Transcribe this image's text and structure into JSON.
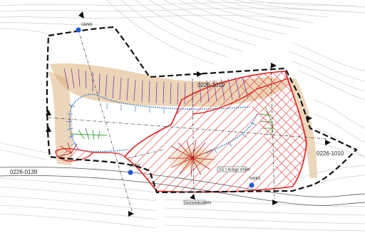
{
  "wells": [
    {
      "id": "gwm3",
      "label": "GWM3"
    },
    {
      "id": "gwm2",
      "label": "GWM2"
    },
    {
      "id": "gwm1",
      "label": "GWM1"
    }
  ],
  "parcels": [
    {
      "id": "p1",
      "label": "0226-0139"
    },
    {
      "id": "p2",
      "label": "0226-1010"
    },
    {
      "id": "p3",
      "label": "0226-1019"
    }
  ],
  "small_labels": {
    "road_label": "Gemeindestraße",
    "box_label": "GS = Anlage erhöht"
  },
  "colors": {
    "boundary": "#111111",
    "red_area": "#e02020",
    "purple_hatch": "#7a3fb0",
    "blue_bank": "#3a7cc8",
    "green": "#3aa03a",
    "tan": "#c8a070",
    "contour": "#bdbdbd",
    "well": "#1e5ad6"
  }
}
